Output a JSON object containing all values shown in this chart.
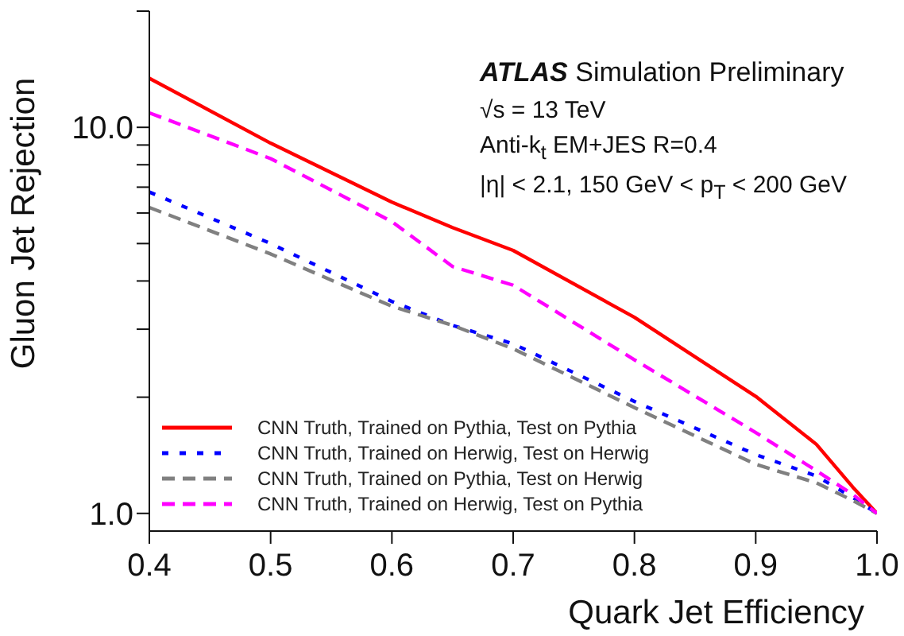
{
  "chart_data": {
    "type": "line",
    "xlabel": "Quark Jet Efficiency",
    "ylabel": "Gluon Jet Rejection",
    "annotations": [
      "ATLAS",
      "Simulation Preliminary",
      "√s = 13 TeV",
      "Anti-k$_{t}$ EM+JES R=0.4",
      "|η| < 2.1, 150 GeV < p$_{T}$ < 200 GeV"
    ],
    "log": "y",
    "xlim": [
      0.4,
      1.0
    ],
    "xticks": [
      {
        "value": 0.4,
        "label": "0.4"
      },
      {
        "value": 0.5,
        "label": "0.5"
      },
      {
        "value": 0.6,
        "label": "0.6"
      },
      {
        "value": 0.7,
        "label": "0.7"
      },
      {
        "value": 0.8,
        "label": "0.8"
      },
      {
        "value": 0.9,
        "label": "0.9"
      },
      {
        "value": 1.0,
        "label": "1.0"
      }
    ],
    "ylim": [
      0.9,
      20
    ],
    "yticks": [
      {
        "value": 1,
        "label": "1.0"
      },
      {
        "value": 2,
        "label": null
      },
      {
        "value": 3,
        "label": null
      },
      {
        "value": 4,
        "label": null
      },
      {
        "value": 5,
        "label": null
      },
      {
        "value": 6,
        "label": null
      },
      {
        "value": 7,
        "label": null
      },
      {
        "value": 8,
        "label": null
      },
      {
        "value": 9,
        "label": null
      },
      {
        "value": 10,
        "label": "10.0"
      },
      {
        "value": 20,
        "label": null
      }
    ],
    "legend": "bottom left",
    "grid": false,
    "x": [
      0.4,
      0.5,
      0.6,
      0.65,
      0.7,
      0.8,
      0.9,
      0.95,
      0.98,
      1.0
    ],
    "series": [
      {
        "name": "CNN Truth, Trained on Pythia, Test on Pythia",
        "color": "#ff0000",
        "line_style": "solid",
        "values": [
          13.4,
          9.1,
          6.4,
          5.5,
          4.8,
          3.22,
          2.01,
          1.51,
          1.17,
          1.0
        ]
      },
      {
        "name": "CNN Truth, Trained on Herwig, Test on Herwig",
        "color": "#0000ff",
        "line_style": "dotted",
        "values": [
          6.8,
          5.0,
          3.54,
          3.07,
          2.75,
          1.95,
          1.42,
          1.25,
          1.1,
          1.0
        ]
      },
      {
        "name": "CNN Truth, Trained on Pythia, Test on Herwig",
        "color": "#808080",
        "line_style": "dashed",
        "values": [
          6.2,
          4.7,
          3.44,
          3.07,
          2.67,
          1.88,
          1.34,
          1.2,
          1.08,
          1.0
        ]
      },
      {
        "name": "CNN Truth, Trained on Herwig, Test on Pythia",
        "color": "#ff00ff",
        "line_style": "dashed",
        "values": [
          10.9,
          8.3,
          5.7,
          4.36,
          3.9,
          2.5,
          1.62,
          1.29,
          1.12,
          1.0
        ]
      }
    ]
  }
}
